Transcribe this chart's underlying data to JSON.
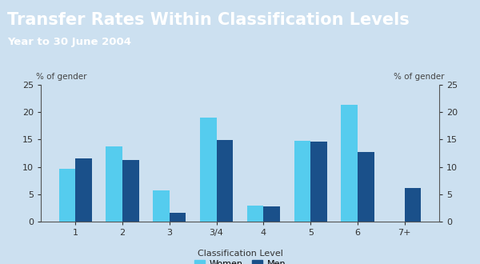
{
  "title": "Transfer Rates Within Classification Levels",
  "subtitle": "Year to 30 June 2004",
  "ylabel": "% of gender",
  "xlabel": "Classification Level",
  "header_bg_color": "#1b6bb0",
  "plot_bg_color": "#cce0f0",
  "fig_bg_color": "#cce0f0",
  "categories": [
    "1",
    "2",
    "3",
    "3/4",
    "4",
    "5",
    "6",
    "7+"
  ],
  "women_values": [
    9.7,
    13.7,
    5.7,
    19.0,
    2.9,
    14.8,
    21.3,
    0.0
  ],
  "men_values": [
    11.5,
    11.2,
    1.7,
    14.9,
    2.8,
    14.6,
    12.7,
    6.2
  ],
  "women_color": "#55ccee",
  "men_color": "#1a508a",
  "ylim": [
    0,
    25
  ],
  "yticks": [
    0,
    5,
    10,
    15,
    20,
    25
  ],
  "bar_width": 0.35,
  "title_fontsize": 15,
  "subtitle_fontsize": 9.5,
  "axis_label_fontsize": 7.5,
  "tick_fontsize": 8,
  "legend_fontsize": 8
}
